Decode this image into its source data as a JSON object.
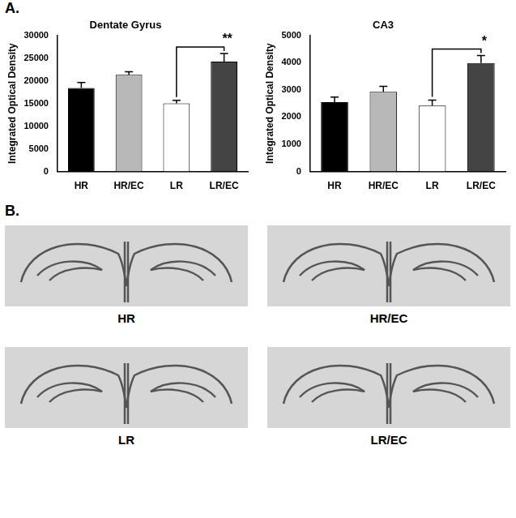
{
  "panel_labels": [
    "A.",
    "B."
  ],
  "chart_data": [
    {
      "type": "bar",
      "title": "Dentate Gyrus",
      "y_label": "Integrated Optical Density",
      "categories": [
        "HR",
        "HR/EC",
        "LR",
        "LR/EC"
      ],
      "values": [
        18400,
        21300,
        15000,
        24200
      ],
      "errors": [
        1200,
        700,
        700,
        1800
      ],
      "colors": [
        "#000000",
        "#b8b8b8",
        "#ffffff",
        "#444444"
      ],
      "ylim": [
        0,
        30000
      ],
      "yticks": [
        0,
        5000,
        10000,
        15000,
        20000,
        25000,
        30000
      ],
      "grid": false,
      "annotations": [
        {
          "text": "**",
          "from": "LR",
          "to": "LR/EC"
        }
      ]
    },
    {
      "type": "bar",
      "title": "CA3",
      "y_label": "Integrated Optical Density",
      "categories": [
        "HR",
        "HR/EC",
        "LR",
        "LR/EC"
      ],
      "values": [
        2550,
        2930,
        2420,
        3980
      ],
      "errors": [
        180,
        200,
        200,
        280
      ],
      "colors": [
        "#000000",
        "#b8b8b8",
        "#ffffff",
        "#444444"
      ],
      "ylim": [
        0,
        5000
      ],
      "yticks": [
        0,
        1000,
        2000,
        3000,
        4000,
        5000
      ],
      "grid": false,
      "annotations": [
        {
          "text": "*",
          "from": "LR",
          "to": "LR/EC"
        }
      ]
    }
  ],
  "images": [
    "HR",
    "HR/EC",
    "LR",
    "LR/EC"
  ]
}
